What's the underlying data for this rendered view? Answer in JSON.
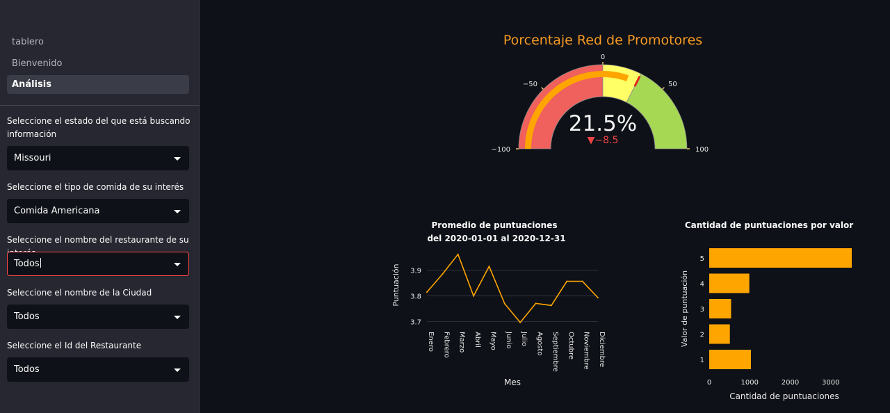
{
  "sidebar": {
    "nav": [
      {
        "label": "tablero"
      },
      {
        "label": "Bienvenido"
      },
      {
        "label": "Análisis"
      }
    ],
    "filters": [
      {
        "label": "Seleccione el estado del que está buscando información",
        "value": "Missouri"
      },
      {
        "label": "Seleccione el tipo de comida de su interés",
        "value": "Comida Americana"
      },
      {
        "label": "Seleccione el nombre del restaurante de su interés",
        "value": "Todos"
      },
      {
        "label": "Seleccione el nombre de la Ciudad",
        "value": "Todos"
      },
      {
        "label": "Seleccione el Id del Restaurante",
        "value": "Todos"
      }
    ]
  },
  "colors": {
    "background": "#0e1117",
    "sidebar": "#262730",
    "accent_orange": "#ffa500",
    "title_orange": "#f59a23",
    "gauge_red": "#f0605d",
    "gauge_yellow": "#ffff66",
    "gauge_green": "#a6d854",
    "delta_red": "#ef4444",
    "focus_red": "#ff4b4b"
  },
  "chart_data": [
    {
      "type": "gauge",
      "title": "Porcentaje Red de Promotores",
      "value": 21.5,
      "value_text": "21.5%",
      "delta": -8.5,
      "delta_text": "▼−8.5",
      "range": [
        -100,
        100
      ],
      "ticks": [
        "−100",
        "−50",
        "0",
        "50",
        "100"
      ],
      "tick_values": [
        -100,
        -50,
        0,
        50,
        100
      ],
      "bands": [
        {
          "from": -100,
          "to": 0,
          "color": "#f0605d"
        },
        {
          "from": 0,
          "to": 30,
          "color": "#ffff66"
        },
        {
          "from": 30,
          "to": 100,
          "color": "#a6d854"
        }
      ],
      "threshold": 30
    },
    {
      "type": "line",
      "title": "Promedio de puntuaciones",
      "subtitle": "del 2020-01-01 al 2020-12-31",
      "xlabel": "Mes",
      "ylabel": "Puntuación",
      "categories": [
        "Enero",
        "Febrero",
        "Marzo",
        "Abril",
        "Mayo",
        "Junio",
        "Julio",
        "Agosto",
        "Septiembre",
        "Octubre",
        "Noviembre",
        "Diciembre"
      ],
      "values": [
        3.815,
        3.885,
        3.962,
        3.8,
        3.915,
        3.77,
        3.697,
        3.771,
        3.763,
        3.857,
        3.857,
        3.793
      ],
      "ylim": [
        3.68,
        3.975
      ],
      "yticks": [
        "3.7",
        "3.8",
        "3.9"
      ],
      "ytick_values": [
        3.7,
        3.8,
        3.9
      ],
      "grid": true
    },
    {
      "type": "bar",
      "orientation": "horizontal",
      "title": "Cantidad de puntuaciones por valor",
      "xlabel": "Cantidad de puntuaciones",
      "ylabel": "Valor de puntuación",
      "categories": [
        "1",
        "2",
        "3",
        "4",
        "5"
      ],
      "values": [
        1030,
        510,
        540,
        990,
        3520
      ],
      "xlim": [
        0,
        3520
      ],
      "xticks": [
        "0",
        "1000",
        "2000",
        "3000"
      ],
      "xtick_values": [
        0,
        1000,
        2000,
        3000
      ]
    }
  ]
}
